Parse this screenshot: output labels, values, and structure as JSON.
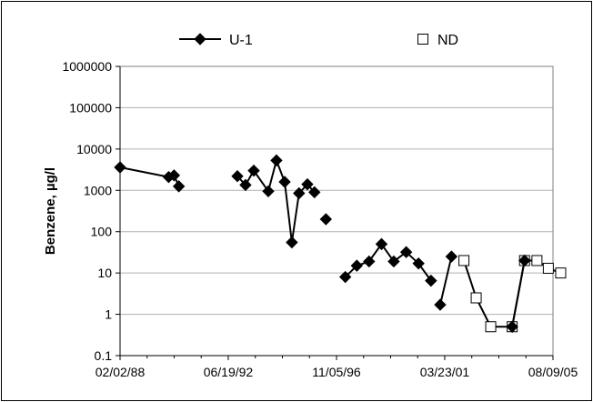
{
  "chart_data": {
    "type": "line",
    "title": "",
    "xlabel": "",
    "ylabel": "Benzene, µg/l",
    "y_scale": "log",
    "ylim": [
      0.1,
      1000000
    ],
    "xlim": [
      "1988-02-02",
      "2005-08-09"
    ],
    "x_ticks": [
      "02/02/88",
      "06/19/92",
      "11/05/96",
      "03/23/01",
      "08/09/05"
    ],
    "y_ticks": [
      "0.1",
      "1",
      "10",
      "100",
      "1000",
      "10000",
      "100000",
      "1000000"
    ],
    "grid": "horizontal",
    "legend": {
      "position": "top",
      "entries": [
        "U-1",
        "ND"
      ]
    },
    "series": [
      {
        "name": "U-1",
        "marker": "filled-diamond",
        "color": "#000000",
        "points": [
          {
            "x": "1988-02-02",
            "y": 3600,
            "connect": false
          },
          {
            "x": "1990-01-20",
            "y": 2100,
            "connect": false
          },
          {
            "x": "1990-04-10",
            "y": 2300,
            "connect": true
          },
          {
            "x": "1990-06-20",
            "y": 1250,
            "connect": true
          },
          {
            "x": "1992-11-01",
            "y": 2200,
            "connect": false
          },
          {
            "x": "1993-03-01",
            "y": 1350,
            "connect": true
          },
          {
            "x": "1993-07-01",
            "y": 3000,
            "connect": true
          },
          {
            "x": "1994-02-01",
            "y": 950,
            "connect": true
          },
          {
            "x": "1994-06-01",
            "y": 5300,
            "connect": true
          },
          {
            "x": "1994-10-01",
            "y": 1600,
            "connect": true
          },
          {
            "x": "1995-01-15",
            "y": 55,
            "connect": true
          },
          {
            "x": "1995-05-01",
            "y": 850,
            "connect": true
          },
          {
            "x": "1995-09-01",
            "y": 1400,
            "connect": true
          },
          {
            "x": "1995-12-15",
            "y": 900,
            "connect": true
          },
          {
            "x": "1996-06-01",
            "y": 200,
            "connect": false
          },
          {
            "x": "1997-03-15",
            "y": 8,
            "connect": false
          },
          {
            "x": "1997-09-01",
            "y": 15,
            "connect": true
          },
          {
            "x": "1998-03-01",
            "y": 19,
            "connect": true
          },
          {
            "x": "1998-09-01",
            "y": 50,
            "connect": true
          },
          {
            "x": "1999-03-01",
            "y": 19,
            "connect": true
          },
          {
            "x": "1999-09-01",
            "y": 32,
            "connect": true
          },
          {
            "x": "2000-03-01",
            "y": 17,
            "connect": true
          },
          {
            "x": "2000-09-01",
            "y": 6.5,
            "connect": true
          },
          {
            "x": "2001-01-15",
            "y": 1.7,
            "connect": false
          },
          {
            "x": "2001-07-01",
            "y": 25,
            "connect": true
          },
          {
            "x": "2003-12-15",
            "y": 0.5,
            "connect": false
          },
          {
            "x": "2004-06-15",
            "y": 20,
            "connect": true
          }
        ]
      },
      {
        "name": "ND",
        "marker": "open-square",
        "color": "#000000",
        "points": [
          {
            "x": "2002-01-01",
            "y": 20
          },
          {
            "x": "2002-07-01",
            "y": 2.5
          },
          {
            "x": "2003-02-01",
            "y": 0.5
          },
          {
            "x": "2003-12-15",
            "y": 0.5
          },
          {
            "x": "2004-06-15",
            "y": 20
          },
          {
            "x": "2004-12-15",
            "y": 20
          },
          {
            "x": "2005-06-01",
            "y": 13
          },
          {
            "x": "2005-12-01",
            "y": 10
          }
        ]
      }
    ]
  }
}
